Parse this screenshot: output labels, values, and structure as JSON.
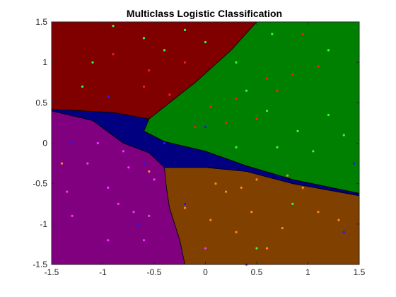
{
  "chart_data": {
    "type": "scatter",
    "title": "Multiclass Logistic Classification",
    "xlabel": "",
    "ylabel": "",
    "xlim": [
      -1.5,
      1.5
    ],
    "ylim": [
      -1.5,
      1.5
    ],
    "xticks": [
      "-1.5",
      "-1",
      "-0.5",
      "0",
      "0.5",
      "1",
      "1.5"
    ],
    "yticks": [
      "1.5",
      "1",
      "0.5",
      "0",
      "-0.5",
      "-1",
      "-1.5"
    ],
    "grid": false,
    "colors": {
      "region_red": "#800000",
      "region_green": "#008000",
      "region_blue": "#000080",
      "region_purple": "#800080",
      "region_orange": "#804000",
      "point_red": "#ff1a1a",
      "point_green": "#33ff33",
      "point_blue": "#1a1aff",
      "point_purple": "#ff33ff",
      "point_orange": "#ff8c1a"
    },
    "regions": [
      {
        "name": "red",
        "color": "#800000",
        "boundary": [
          [
            -1.5,
            1.5
          ],
          [
            0.5,
            1.5
          ],
          [
            0.25,
            1.15
          ],
          [
            -0.1,
            0.75
          ],
          [
            -0.55,
            0.3
          ],
          [
            -0.9,
            0.38
          ],
          [
            -1.5,
            0.42
          ]
        ]
      },
      {
        "name": "green",
        "color": "#008000",
        "boundary": [
          [
            0.5,
            1.5
          ],
          [
            1.5,
            1.5
          ],
          [
            1.5,
            -0.62
          ],
          [
            0.85,
            -0.45
          ],
          [
            0.4,
            -0.28
          ],
          [
            0.0,
            -0.1
          ],
          [
            -0.4,
            0.02
          ],
          [
            -0.6,
            0.15
          ],
          [
            -0.55,
            0.3
          ],
          [
            -0.1,
            0.75
          ],
          [
            0.25,
            1.15
          ]
        ]
      },
      {
        "name": "blue",
        "color": "#000080",
        "boundary": [
          [
            -1.5,
            0.42
          ],
          [
            -0.9,
            0.38
          ],
          [
            -0.55,
            0.3
          ],
          [
            -0.6,
            0.15
          ],
          [
            -0.4,
            0.02
          ],
          [
            0.0,
            -0.1
          ],
          [
            0.4,
            -0.28
          ],
          [
            0.85,
            -0.45
          ],
          [
            1.5,
            -0.62
          ],
          [
            1.5,
            -0.65
          ],
          [
            0.85,
            -0.5
          ],
          [
            0.4,
            -0.35
          ],
          [
            0.0,
            -0.3
          ],
          [
            -0.4,
            -0.3
          ],
          [
            -0.55,
            -0.12
          ],
          [
            -0.8,
            0.0
          ],
          [
            -1.1,
            0.28
          ],
          [
            -1.5,
            0.4
          ]
        ]
      },
      {
        "name": "purple",
        "color": "#800080",
        "boundary": [
          [
            -1.5,
            0.4
          ],
          [
            -1.1,
            0.28
          ],
          [
            -0.8,
            0.0
          ],
          [
            -0.55,
            -0.12
          ],
          [
            -0.4,
            -0.3
          ],
          [
            -0.38,
            -0.55
          ],
          [
            -0.35,
            -0.8
          ],
          [
            -0.25,
            -1.2
          ],
          [
            -0.2,
            -1.5
          ],
          [
            -1.5,
            -1.5
          ]
        ]
      },
      {
        "name": "orange",
        "color": "#804000",
        "boundary": [
          [
            -0.4,
            -0.3
          ],
          [
            0.0,
            -0.3
          ],
          [
            0.4,
            -0.35
          ],
          [
            0.85,
            -0.5
          ],
          [
            1.5,
            -0.65
          ],
          [
            1.5,
            -1.5
          ],
          [
            -0.2,
            -1.5
          ],
          [
            -0.25,
            -1.2
          ],
          [
            -0.35,
            -0.8
          ],
          [
            -0.38,
            -0.55
          ]
        ]
      }
    ],
    "series": [
      {
        "color": "#ff1a1a",
        "points": [
          [
            -0.9,
            1.1
          ],
          [
            -0.6,
            0.7
          ],
          [
            -0.2,
            1.0
          ],
          [
            -0.55,
            0.9
          ],
          [
            -0.35,
            0.6
          ],
          [
            0.05,
            0.45
          ],
          [
            0.3,
            0.55
          ],
          [
            0.5,
            0.3
          ],
          [
            0.7,
            0.65
          ],
          [
            0.85,
            0.85
          ],
          [
            1.1,
            0.95
          ],
          [
            0.95,
            1.35
          ],
          [
            0.6,
            0.8
          ],
          [
            0.2,
            0.25
          ],
          [
            -0.1,
            0.2
          ]
        ]
      },
      {
        "color": "#33ff33",
        "points": [
          [
            -1.2,
            0.7
          ],
          [
            -0.9,
            1.45
          ],
          [
            -0.6,
            1.3
          ],
          [
            -0.4,
            1.15
          ],
          [
            -0.2,
            1.4
          ],
          [
            0.0,
            1.25
          ],
          [
            0.3,
            1.0
          ],
          [
            0.6,
            0.4
          ],
          [
            0.9,
            0.15
          ],
          [
            1.2,
            0.35
          ],
          [
            1.35,
            0.1
          ],
          [
            1.05,
            -0.1
          ],
          [
            0.7,
            -0.05
          ],
          [
            0.3,
            -0.05
          ],
          [
            0.4,
            0.65
          ],
          [
            0.65,
            1.35
          ],
          [
            1.2,
            1.15
          ],
          [
            -1.1,
            1.0
          ],
          [
            0.85,
            -0.75
          ],
          [
            0.5,
            -1.3
          ]
        ]
      },
      {
        "color": "#1a1aff",
        "points": [
          [
            -1.3,
            0.0
          ],
          [
            -0.6,
            -0.25
          ],
          [
            -0.4,
            0.0
          ],
          [
            0.0,
            0.2
          ],
          [
            -0.95,
            0.58
          ],
          [
            0.4,
            -1.5
          ],
          [
            1.45,
            -0.25
          ],
          [
            1.35,
            -1.1
          ],
          [
            -0.2,
            -0.75
          ],
          [
            -0.65,
            -1.0
          ]
        ]
      },
      {
        "color": "#ff33ff",
        "points": [
          [
            -1.35,
            -0.6
          ],
          [
            -1.15,
            -0.25
          ],
          [
            -0.95,
            -0.55
          ],
          [
            -0.8,
            -0.1
          ],
          [
            -0.7,
            -0.85
          ],
          [
            -0.55,
            -0.9
          ],
          [
            -1.3,
            -0.9
          ],
          [
            -0.85,
            -0.75
          ],
          [
            -0.95,
            -1.2
          ],
          [
            -0.6,
            -1.2
          ],
          [
            -0.5,
            -0.45
          ],
          [
            -0.75,
            -0.3
          ],
          [
            -1.05,
            0.0
          ],
          [
            0.0,
            -1.3
          ]
        ]
      },
      {
        "color": "#ff8c1a",
        "points": [
          [
            -0.2,
            -0.8
          ],
          [
            0.2,
            -0.6
          ],
          [
            0.5,
            -0.45
          ],
          [
            0.8,
            -0.4
          ],
          [
            1.1,
            -0.85
          ],
          [
            1.3,
            -0.95
          ],
          [
            0.3,
            -1.1
          ],
          [
            0.6,
            -1.3
          ],
          [
            0.05,
            -0.95
          ],
          [
            0.45,
            -0.85
          ],
          [
            0.95,
            -0.55
          ],
          [
            0.75,
            -1.05
          ],
          [
            0.35,
            -0.55
          ],
          [
            -1.4,
            -0.25
          ],
          [
            -0.55,
            -0.35
          ],
          [
            0.1,
            -0.5
          ]
        ]
      }
    ]
  }
}
